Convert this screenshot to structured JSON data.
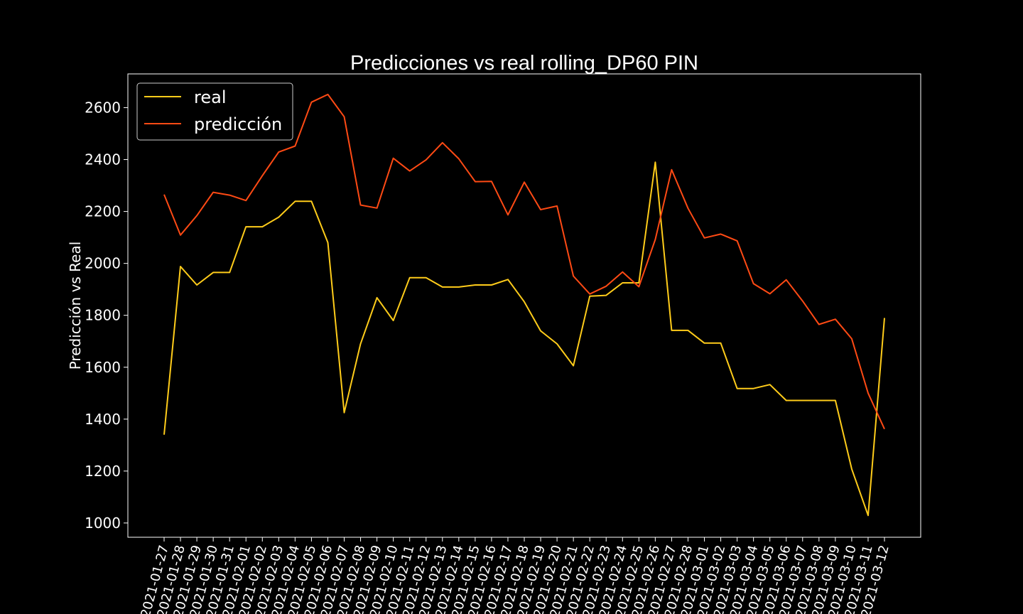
{
  "chart_data": {
    "type": "line",
    "title": "Predicciones vs real rolling_DP60 PIN",
    "xlabel": "",
    "ylabel": "Predicción vs Real",
    "ylim": [
      945,
      2730
    ],
    "yticks": [
      1000,
      1200,
      1400,
      1600,
      1800,
      2000,
      2200,
      2400,
      2600
    ],
    "grid": false,
    "legend_position": "upper-left",
    "background": "#000000",
    "categories": [
      "2021-01-27",
      "2021-01-28",
      "2021-01-29",
      "2021-01-30",
      "2021-01-31",
      "2021-02-01",
      "2021-02-02",
      "2021-02-03",
      "2021-02-04",
      "2021-02-05",
      "2021-02-06",
      "2021-02-07",
      "2021-02-08",
      "2021-02-09",
      "2021-02-10",
      "2021-02-11",
      "2021-02-12",
      "2021-02-13",
      "2021-02-14",
      "2021-02-15",
      "2021-02-16",
      "2021-02-17",
      "2021-02-18",
      "2021-02-19",
      "2021-02-20",
      "2021-02-21",
      "2021-02-22",
      "2021-02-23",
      "2021-02-24",
      "2021-02-25",
      "2021-02-26",
      "2021-02-27",
      "2021-02-28",
      "2021-03-01",
      "2021-03-02",
      "2021-03-03",
      "2021-03-04",
      "2021-03-05",
      "2021-03-06",
      "2021-03-07",
      "2021-03-08",
      "2021-03-09",
      "2021-03-10",
      "2021-03-11",
      "2021-03-12"
    ],
    "series": [
      {
        "name": "real",
        "color": "#ffcc1a",
        "values": [
          1340,
          1988,
          1917,
          1965,
          1965,
          2141,
          2141,
          2178,
          2239,
          2239,
          2080,
          1425,
          1690,
          1868,
          1780,
          1945,
          1945,
          1909,
          1909,
          1917,
          1917,
          1938,
          1852,
          1740,
          1690,
          1606,
          1874,
          1877,
          1925,
          1925,
          2390,
          1742,
          1742,
          1693,
          1693,
          1518,
          1518,
          1533,
          1472,
          1472,
          1472,
          1472,
          1208,
          1029,
          1790
        ]
      },
      {
        "name": "predicción",
        "color": "#ff4a14",
        "values": [
          2265,
          2109,
          2184,
          2274,
          2263,
          2242,
          2338,
          2429,
          2452,
          2621,
          2651,
          2565,
          2225,
          2213,
          2405,
          2356,
          2399,
          2465,
          2403,
          2315,
          2316,
          2187,
          2313,
          2207,
          2221,
          1951,
          1882,
          1912,
          1967,
          1910,
          2092,
          2361,
          2212,
          2098,
          2113,
          2087,
          1922,
          1883,
          1937,
          1855,
          1765,
          1785,
          1710,
          1500,
          1362
        ]
      }
    ]
  }
}
